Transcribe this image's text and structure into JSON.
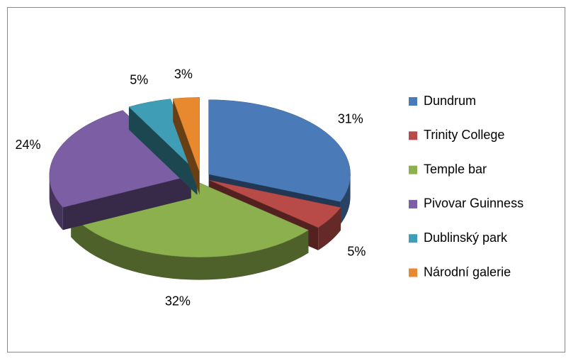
{
  "chart_data": {
    "type": "pie",
    "categories": [
      "Dundrum",
      "Trinity College",
      "Temple bar",
      "Pivovar Guinness",
      "Dublinský park",
      "Národní galerie"
    ],
    "values": [
      31,
      5,
      32,
      24,
      5,
      3
    ],
    "value_labels": [
      "31%",
      "5%",
      "32%",
      "24%",
      "5%",
      "3%"
    ],
    "colors": [
      "#4a7ab8",
      "#b84a47",
      "#8db04f",
      "#7b5ea3",
      "#3f9db5",
      "#e8892f"
    ],
    "legend": "right"
  }
}
